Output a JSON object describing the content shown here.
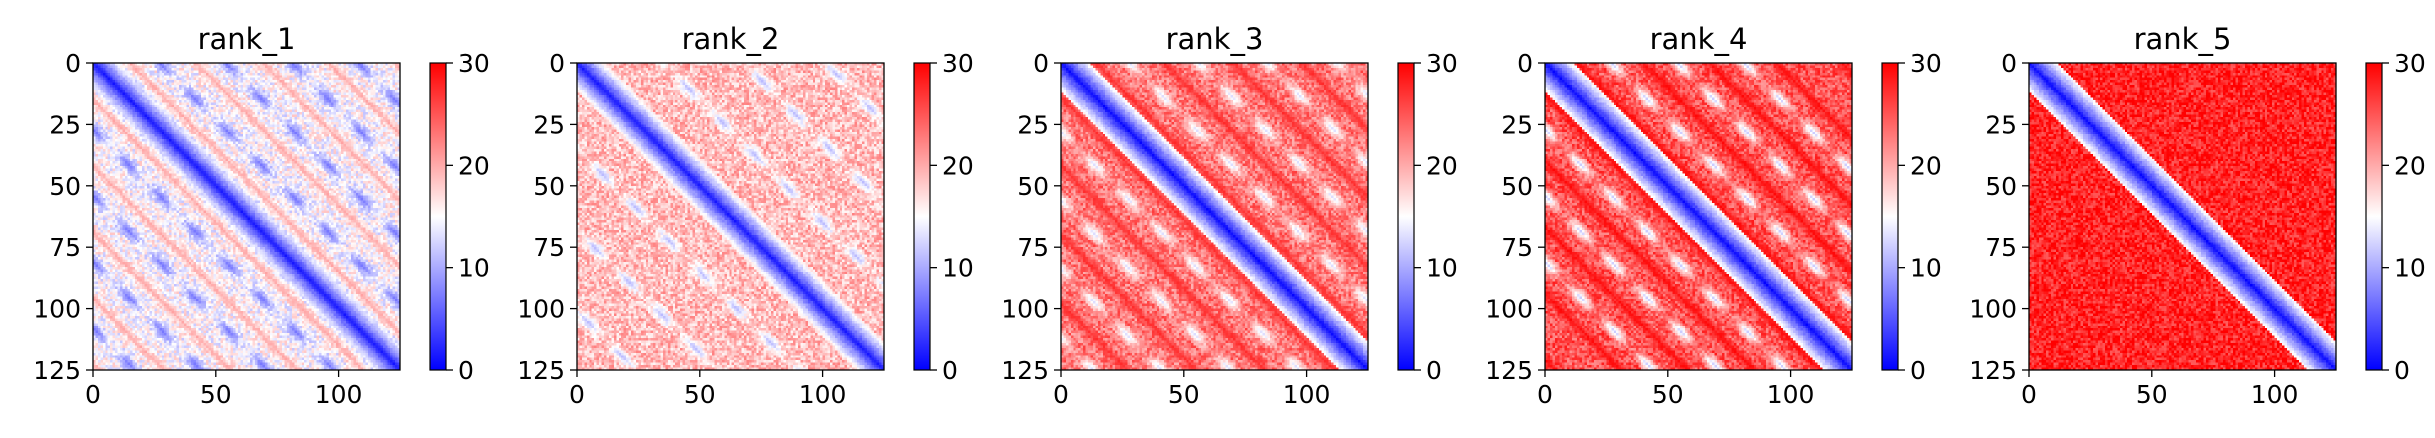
{
  "chart_data": [
    {
      "type": "heatmap",
      "title": "rank_1",
      "xlim": [
        0,
        125
      ],
      "ylim": [
        125,
        0
      ],
      "xticks": [
        "0",
        "50",
        "100"
      ],
      "yticks": [
        "0",
        "25",
        "50",
        "75",
        "100",
        "125"
      ],
      "colorbar": {
        "ticks": [
          "0",
          "10",
          "20",
          "30"
        ],
        "range": [
          0,
          30
        ],
        "colormap": "bwr"
      },
      "matrix_size": 125,
      "pattern": {
        "base": 15,
        "stripes": [
          0,
          27,
          54,
          81,
          108
        ],
        "stripe_value": 7,
        "diag_value": 2,
        "red_bands": [
          15,
          42,
          69,
          96,
          123
        ],
        "red_value": 21
      }
    },
    {
      "type": "heatmap",
      "title": "rank_2",
      "xlim": [
        0,
        125
      ],
      "ylim": [
        125,
        0
      ],
      "xticks": [
        "0",
        "50",
        "100"
      ],
      "yticks": [
        "0",
        "25",
        "50",
        "75",
        "100",
        "125"
      ],
      "colorbar": {
        "ticks": [
          "0",
          "10",
          "20",
          "30"
        ],
        "range": [
          0,
          30
        ],
        "colormap": "bwr"
      },
      "matrix_size": 125,
      "pattern": {
        "base": 19,
        "stripes": [
          35,
          68,
          101
        ],
        "stripe_value": 11,
        "diag_value": 2,
        "red_bands": [],
        "red_value": 22
      }
    },
    {
      "type": "heatmap",
      "title": "rank_3",
      "xlim": [
        0,
        125
      ],
      "ylim": [
        125,
        0
      ],
      "xticks": [
        "0",
        "50",
        "100"
      ],
      "yticks": [
        "0",
        "25",
        "50",
        "75",
        "100",
        "125"
      ],
      "colorbar": {
        "ticks": [
          "0",
          "10",
          "20",
          "30"
        ],
        "range": [
          0,
          30
        ],
        "colormap": "bwr"
      },
      "matrix_size": 125,
      "pattern": {
        "base": 23,
        "stripes": [
          28,
          56,
          84,
          112
        ],
        "stripe_value": 13,
        "diag_value": 1,
        "red_bands": [
          14,
          42,
          70,
          98
        ],
        "red_value": 28
      }
    },
    {
      "type": "heatmap",
      "title": "rank_4",
      "xlim": [
        0,
        125
      ],
      "ylim": [
        125,
        0
      ],
      "xticks": [
        "0",
        "50",
        "100"
      ],
      "yticks": [
        "0",
        "25",
        "50",
        "75",
        "100",
        "125"
      ],
      "colorbar": {
        "ticks": [
          "0",
          "10",
          "20",
          "30"
        ],
        "range": [
          0,
          30
        ],
        "colormap": "bwr"
      },
      "matrix_size": 125,
      "pattern": {
        "base": 25,
        "stripes": [
          27,
          54,
          81
        ],
        "stripe_value": 12,
        "diag_value": 1,
        "red_bands": [
          13,
          40,
          67,
          94,
          121
        ],
        "red_value": 30
      }
    },
    {
      "type": "heatmap",
      "title": "rank_5",
      "xlim": [
        0,
        125
      ],
      "ylim": [
        125,
        0
      ],
      "xticks": [
        "0",
        "50",
        "100"
      ],
      "yticks": [
        "0",
        "25",
        "50",
        "75",
        "100",
        "125"
      ],
      "colorbar": {
        "ticks": [
          "0",
          "10",
          "20",
          "30"
        ],
        "range": [
          0,
          30
        ],
        "colormap": "bwr"
      },
      "matrix_size": 125,
      "pattern": {
        "base": 28,
        "stripes": [],
        "stripe_value": 20,
        "diag_value": 1,
        "red_bands": [],
        "red_value": 30
      }
    }
  ]
}
